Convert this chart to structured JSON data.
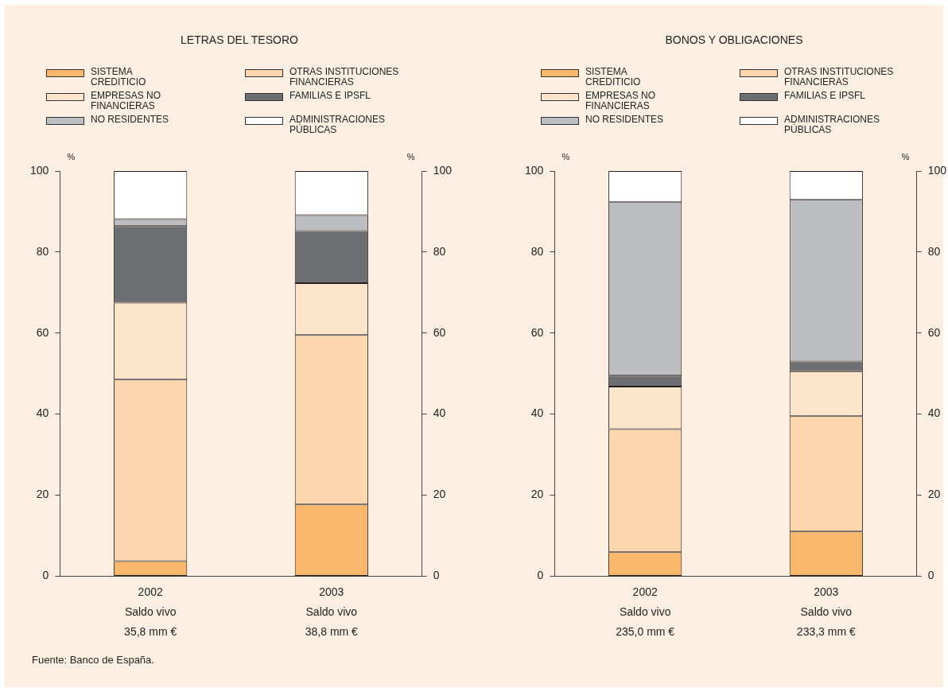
{
  "chart_data": [
    {
      "type": "bar",
      "title": "LETRAS DEL TESORO",
      "stacked": true,
      "legend": "top",
      "grid": false,
      "categories": [
        "2002\nSaldo vivo\n35,8 mm €",
        "2003\nSaldo vivo\n38,8 mm €"
      ],
      "ylabel": "%",
      "y2label": "%",
      "ylim": [
        0,
        100
      ],
      "yticks": [
        0,
        20,
        40,
        60,
        80,
        100
      ],
      "y2lim": [
        0,
        100
      ],
      "y2ticks": [
        0,
        20,
        40,
        60,
        80,
        100
      ],
      "series": [
        {
          "name": "SISTEMA CREDITICIO",
          "color": "#f9b76b",
          "values": [
            3.7,
            17.7
          ]
        },
        {
          "name": "OTRAS INSTITUCIONES FINANCIERAS",
          "color": "#fcd7ad",
          "values": [
            44.8,
            41.8
          ]
        },
        {
          "name": "EMPRESAS NO FINANCIERAS",
          "color": "#fde5cb",
          "values": [
            19.0,
            12.8
          ]
        },
        {
          "name": "FAMILIAS E IPSFL",
          "color": "#6d6e71",
          "values": [
            18.9,
            12.9
          ]
        },
        {
          "name": "NO RESIDENTES",
          "color": "#bdbec2",
          "values": [
            1.7,
            3.9
          ]
        },
        {
          "name": "ADMINISTRACIONES PÚBLICAS",
          "color": "#ffffff",
          "values": [
            11.9,
            10.9
          ]
        }
      ],
      "annotations": [
        "Fuente: Banco de España."
      ]
    },
    {
      "type": "bar",
      "title": "BONOS Y OBLIGACIONES",
      "stacked": true,
      "legend": "top",
      "grid": false,
      "categories": [
        "2002\nSaldo vivo\n235,0 mm €",
        "2003\nSaldo vivo\n233,3 mm €"
      ],
      "ylabel": "%",
      "y2label": "%",
      "ylim": [
        0,
        100
      ],
      "yticks": [
        0,
        20,
        40,
        60,
        80,
        100
      ],
      "y2lim": [
        0,
        100
      ],
      "y2ticks": [
        0,
        20,
        40,
        60,
        80,
        100
      ],
      "series": [
        {
          "name": "SISTEMA CREDITICIO",
          "color": "#f9b76b",
          "values": [
            5.9,
            11.0
          ]
        },
        {
          "name": "OTRAS INSTITUCIONES FINANCIERAS",
          "color": "#fcd7ad",
          "values": [
            30.4,
            28.5
          ]
        },
        {
          "name": "EMPRESAS NO FINANCIERAS",
          "color": "#fde5cb",
          "values": [
            10.5,
            11.1
          ]
        },
        {
          "name": "FAMILIAS E IPSFL",
          "color": "#6d6e71",
          "values": [
            2.7,
            2.4
          ]
        },
        {
          "name": "NO RESIDENTES",
          "color": "#bdbec2",
          "values": [
            42.8,
            39.9
          ]
        },
        {
          "name": "ADMINISTRACIONES PÚBLICAS",
          "color": "#ffffff",
          "values": [
            7.7,
            7.1
          ]
        }
      ]
    }
  ]
}
